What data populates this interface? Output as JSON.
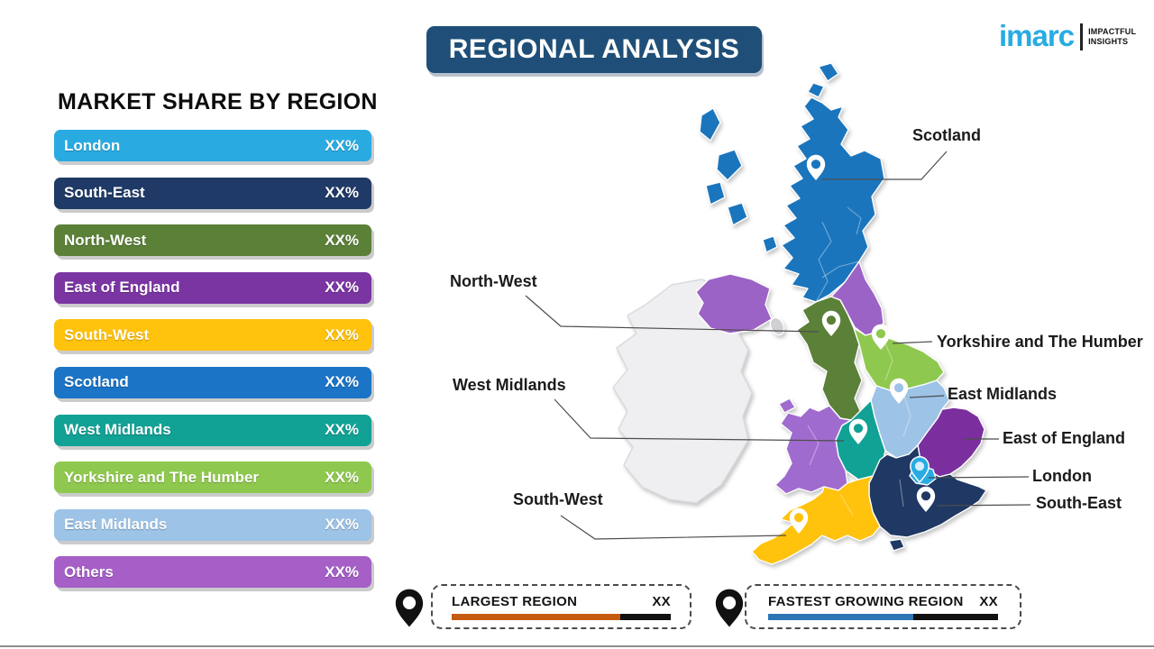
{
  "banner": {
    "title": "REGIONAL ANALYSIS",
    "bg": "#1F4F78"
  },
  "logo": {
    "brand": "imarc",
    "brand_color": "#29ABE2",
    "tagline1": "IMPACTFUL",
    "tagline2": "INSIGHTS"
  },
  "market_share": {
    "heading": "MARKET SHARE BY REGION",
    "bars": [
      {
        "label": "London",
        "value": "XX%",
        "color": "#29ABE2"
      },
      {
        "label": "South-East",
        "value": "XX%",
        "color": "#1F3A66"
      },
      {
        "label": "North-West",
        "value": "XX%",
        "color": "#5B8038"
      },
      {
        "label": "East of England",
        "value": "XX%",
        "color": "#7B35A3"
      },
      {
        "label": "South-West",
        "value": "XX%",
        "color": "#FFC20D"
      },
      {
        "label": "Scotland",
        "value": "XX%",
        "color": "#1B74C5"
      },
      {
        "label": "West Midlands",
        "value": "XX%",
        "color": "#12A195"
      },
      {
        "label": "Yorkshire and The Humber",
        "value": "XX%",
        "color": "#8FC84E"
      },
      {
        "label": "East Midlands",
        "value": "XX%",
        "color": "#9DC3E6"
      },
      {
        "label": "Others",
        "value": "XX%",
        "color": "#A55FC6"
      }
    ]
  },
  "map": {
    "region_colors": {
      "scotland": "#1B75BC",
      "north_east": "#9C63C6",
      "north_west": "#5B8038",
      "yorkshire": "#8FC84E",
      "east_midlands": "#9DC3E6",
      "west_midlands": "#12A195",
      "wales": "#A06BCF",
      "east_of_england": "#7B2F9E",
      "london": "#29ABE2",
      "south_east": "#1F3864",
      "south_west": "#FFC20D",
      "northern_ireland": "#9C63C6",
      "ireland": "#EFEFF1",
      "pin_white": "#FFFFFF",
      "london_pin_hole": "#D6EFFC"
    },
    "labels": {
      "scotland": "Scotland",
      "north_west": "North-West",
      "west_midlands": "West Midlands",
      "south_west": "South-West",
      "yorkshire": "Yorkshire and The Humber",
      "east_midlands": "East Midlands",
      "east_of_england": "East of England",
      "london": "London",
      "south_east": "South-East"
    }
  },
  "legend": {
    "largest": {
      "label": "LARGEST REGION",
      "value": "XX",
      "bar_color": "#C55A11",
      "fill_pct": 77
    },
    "fastest": {
      "label": "FASTEST GROWING REGION",
      "value": "XX",
      "bar_color": "#2E75B6",
      "fill_pct": 63
    }
  },
  "chart_data": {
    "type": "bar",
    "title": "MARKET SHARE BY REGION",
    "categories": [
      "London",
      "South-East",
      "North-West",
      "East of England",
      "South-West",
      "Scotland",
      "West Midlands",
      "Yorkshire and The Humber",
      "East Midlands",
      "Others"
    ],
    "values": [
      "XX%",
      "XX%",
      "XX%",
      "XX%",
      "XX%",
      "XX%",
      "XX%",
      "XX%",
      "XX%",
      "XX%"
    ],
    "legend_items": [
      {
        "label": "LARGEST REGION",
        "value": "XX"
      },
      {
        "label": "FASTEST GROWING REGION",
        "value": "XX"
      }
    ],
    "map_regions_labeled": [
      "Scotland",
      "North-West",
      "Yorkshire and The Humber",
      "East Midlands",
      "West Midlands",
      "East of England",
      "London",
      "South-East",
      "South-West"
    ]
  }
}
